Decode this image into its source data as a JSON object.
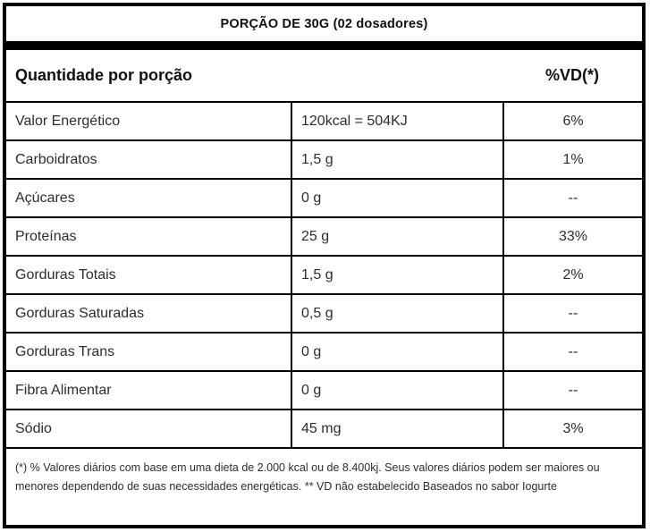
{
  "colors": {
    "border": "#000000",
    "background": "#ffffff",
    "header_text": "#111111",
    "body_text": "#2d2d2d"
  },
  "header": {
    "portion_title": "PORÇÃO DE 30G (02 dosadores)"
  },
  "table": {
    "column_header_left": "Quantidade por porção",
    "column_header_right": "%VD(*)",
    "rows": [
      {
        "label": "Valor Energético",
        "value": "120kcal = 504KJ",
        "vd": "6%"
      },
      {
        "label": "Carboidratos",
        "value": "1,5 g",
        "vd": "1%"
      },
      {
        "label": "Açúcares",
        "value": "0 g",
        "vd": "--"
      },
      {
        "label": "Proteínas",
        "value": "25 g",
        "vd": "33%"
      },
      {
        "label": "Gorduras Totais",
        "value": "1,5 g",
        "vd": "2%"
      },
      {
        "label": "Gorduras Saturadas",
        "value": "0,5 g",
        "vd": "--"
      },
      {
        "label": "Gorduras Trans",
        "value": "0 g",
        "vd": "--"
      },
      {
        "label": "Fibra Alimentar",
        "value": "0 g",
        "vd": "--"
      },
      {
        "label": "Sódio",
        "value": "45 mg",
        "vd": "3%"
      }
    ]
  },
  "footnote": {
    "text": "(*) % Valores diários com base em uma dieta de 2.000 kcal ou de 8.400kj. Seus valores diários podem ser maiores ou menores dependendo de suas necessidades energéticas. ** VD não estabelecido Baseados no sabor Iogurte"
  }
}
